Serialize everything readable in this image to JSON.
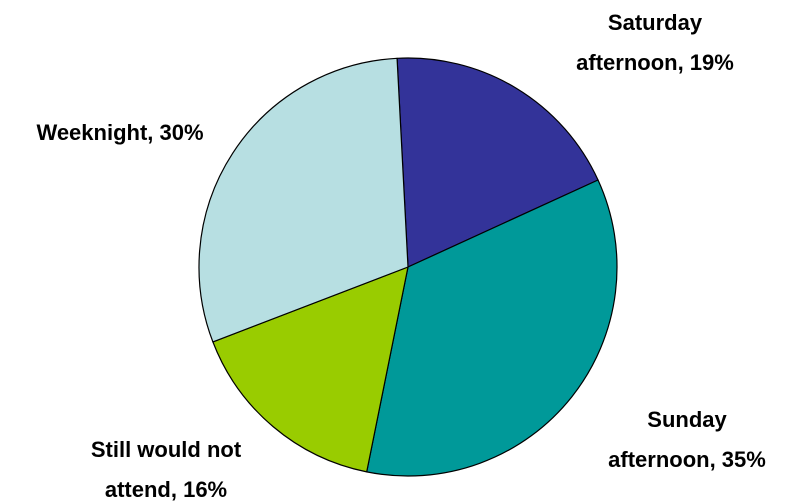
{
  "chart_data": {
    "type": "pie",
    "slices": [
      {
        "label": "Saturday afternoon",
        "value": 19,
        "display_lines": [
          "Saturday",
          "afternoon, 19%"
        ],
        "color": "#333399"
      },
      {
        "label": "Sunday afternoon",
        "value": 35,
        "display_lines": [
          "Sunday",
          "afternoon, 35%"
        ],
        "color": "#009999"
      },
      {
        "label": "Still would not attend",
        "value": 16,
        "display_lines": [
          "Still would not",
          "attend, 16%"
        ],
        "color": "#99cc00"
      },
      {
        "label": "Weeknight",
        "value": 30,
        "display_lines": [
          "Weeknight, 30%"
        ],
        "color": "#b7dfe2"
      }
    ],
    "start_angle_deg": -3,
    "direction": "clockwise",
    "legend": "none"
  }
}
